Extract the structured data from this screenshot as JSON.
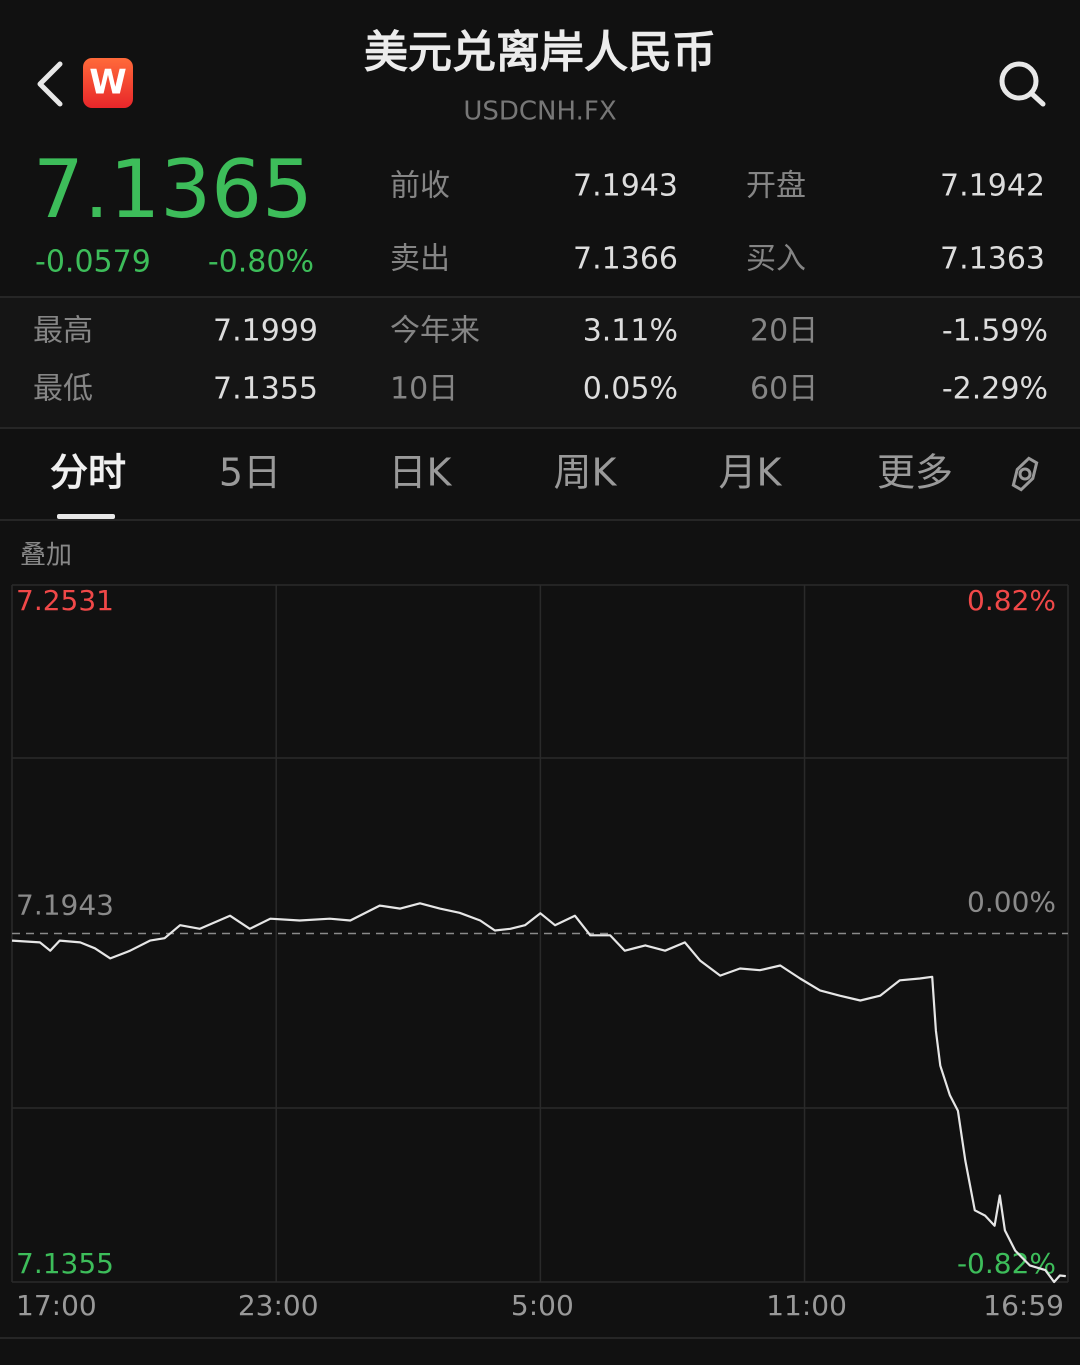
{
  "header": {
    "title": "美元兑离岸人民币",
    "code": "USDCNH.FX",
    "logo": "W"
  },
  "quote": {
    "price": "7.1365",
    "change": "-0.0579",
    "change_pct": "-0.80%"
  },
  "stats": [
    {
      "label": "前收",
      "value": "7.1943"
    },
    {
      "label": "开盘",
      "value": "7.1942"
    },
    {
      "label": "卖出",
      "value": "7.1366"
    },
    {
      "label": "买入",
      "value": "7.1363"
    },
    {
      "label": "最高",
      "value": "7.1999"
    },
    {
      "label": "今年来",
      "value": "3.11%"
    },
    {
      "label": "20日",
      "value": "-1.59%"
    },
    {
      "label": "最低",
      "value": "7.1355"
    },
    {
      "label": "10日",
      "value": "0.05%"
    },
    {
      "label": "60日",
      "value": "-2.29%"
    }
  ],
  "tabs": [
    "分时",
    "5日",
    "日K",
    "周K",
    "月K",
    "更多"
  ],
  "chart_data": {
    "type": "line",
    "overlay_label": "叠加",
    "color": "#e6e6e6",
    "x": [
      0,
      38,
      52,
      65,
      93,
      113,
      134,
      161,
      188,
      208,
      229,
      256,
      297,
      324,
      352,
      392,
      433,
      461,
      501,
      529,
      556,
      583,
      610,
      638,
      658,
      679,
      699,
      720,
      740,
      767,
      788,
      815,
      835,
      863,
      890,
      917,
      938,
      965,
      992,
      1019,
      1047,
      1074,
      1101,
      1128,
      1156,
      1183,
      1210,
      1237,
      1254,
      1259,
      1265,
      1278,
      1289,
      1299,
      1312,
      1326,
      1339,
      1346,
      1353,
      1367,
      1387,
      1408,
      1420,
      1428,
      1436
    ],
    "values": [
      7.1931,
      7.1928,
      7.1914,
      7.1931,
      7.1928,
      7.1918,
      7.1901,
      7.1914,
      7.1931,
      7.1935,
      7.1957,
      7.1951,
      7.1973,
      7.1951,
      7.1968,
      7.1965,
      7.1968,
      7.1965,
      7.199,
      7.1985,
      7.1994,
      7.1985,
      7.1978,
      7.1965,
      7.1948,
      7.1951,
      7.1957,
      7.1977,
      7.1957,
      7.1973,
      7.194,
      7.194,
      7.1914,
      7.1923,
      7.1914,
      7.1928,
      7.1897,
      7.1872,
      7.1884,
      7.1881,
      7.1889,
      7.1867,
      7.1847,
      7.1838,
      7.183,
      7.1838,
      7.1864,
      7.1867,
      7.187,
      7.1779,
      7.172,
      7.167,
      7.1644,
      7.156,
      7.1476,
      7.1467,
      7.145,
      7.1501,
      7.1442,
      7.1408,
      7.1383,
      7.1375,
      7.1355,
      7.1366,
      7.1365
    ],
    "xlim": [
      0,
      1439
    ],
    "xticks": [
      {
        "value": 0,
        "label": "17:00"
      },
      {
        "value": 360,
        "label": "23:00"
      },
      {
        "value": 720,
        "label": "5:00"
      },
      {
        "value": 1080,
        "label": "11:00"
      },
      {
        "value": 1439,
        "label": "16:59"
      }
    ],
    "ylim": [
      7.1355,
      7.2531
    ],
    "yticks": [
      7.1355,
      7.1943,
      7.2531
    ],
    "y2lim": [
      -0.82,
      0.82
    ],
    "y2ticks": [
      {
        "value": -0.82,
        "label": "-0.82%"
      },
      {
        "value": 0,
        "label": "0.00%"
      },
      {
        "value": 0.82,
        "label": "0.82%"
      }
    ]
  }
}
